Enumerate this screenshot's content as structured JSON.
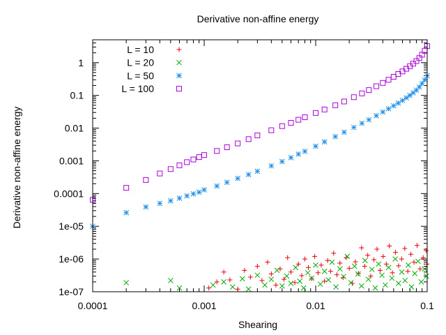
{
  "chart_data": {
    "type": "scatter",
    "title": "Derivative non-affine energy",
    "xlabel": "Shearing",
    "ylabel": "Derivative non-affine energy",
    "xscale": "log",
    "yscale": "log",
    "xlim": [
      0.0001,
      0.1
    ],
    "ylim": [
      1e-07,
      5
    ],
    "xticks": [
      {
        "value": 0.0001,
        "label": "0.0001"
      },
      {
        "value": 0.001,
        "label": "0.001"
      },
      {
        "value": 0.01,
        "label": "0.01"
      },
      {
        "value": 0.1,
        "label": "0.1"
      }
    ],
    "yticks": [
      {
        "value": 1e-07,
        "label": "1e-07"
      },
      {
        "value": 1e-06,
        "label": "1e-06"
      },
      {
        "value": 1e-05,
        "label": "1e-05"
      },
      {
        "value": 0.0001,
        "label": "0.0001"
      },
      {
        "value": 0.001,
        "label": "0.001"
      },
      {
        "value": 0.01,
        "label": "0.01"
      },
      {
        "value": 0.1,
        "label": "0.1"
      },
      {
        "value": 1,
        "label": "1"
      }
    ],
    "grid": false,
    "legend_position": "top-left",
    "series": [
      {
        "name": "L = 10",
        "marker": "plus",
        "color": "#e8000b",
        "points": [
          [
            0.0011,
            1.3e-07
          ],
          [
            0.0013,
            2e-07
          ],
          [
            0.0015,
            4e-07
          ],
          [
            0.0017,
            2.3e-07
          ],
          [
            0.002,
            1.2e-07
          ],
          [
            0.0023,
            4.5e-07
          ],
          [
            0.0026,
            2.8e-07
          ],
          [
            0.003,
            6e-07
          ],
          [
            0.0033,
            2.2e-07
          ],
          [
            0.0037,
            8e-07
          ],
          [
            0.004,
            3.5e-07
          ],
          [
            0.0044,
            1.6e-07
          ],
          [
            0.0048,
            5e-07
          ],
          [
            0.0052,
            2.4e-07
          ],
          [
            0.0056,
            1.1e-06
          ],
          [
            0.006,
            4e-07
          ],
          [
            0.0065,
            1.9e-07
          ],
          [
            0.007,
            7e-07
          ],
          [
            0.0075,
            3.1e-07
          ],
          [
            0.008,
            1e-06
          ],
          [
            0.0086,
            5.5e-07
          ],
          [
            0.0092,
            2.5e-07
          ],
          [
            0.0098,
            1.2e-06
          ],
          [
            0.0105,
            3.8e-07
          ],
          [
            0.0112,
            6.5e-07
          ],
          [
            0.012,
            2.1e-07
          ],
          [
            0.0128,
            9e-07
          ],
          [
            0.0136,
            4.2e-07
          ],
          [
            0.0145,
            1.5e-06
          ],
          [
            0.0155,
            3.3e-07
          ],
          [
            0.0165,
            7.5e-07
          ],
          [
            0.0176,
            2.7e-07
          ],
          [
            0.0188,
            1.1e-06
          ],
          [
            0.02,
            5.2e-07
          ],
          [
            0.0213,
            1.8e-07
          ],
          [
            0.0227,
            8.2e-07
          ],
          [
            0.0242,
            3.6e-07
          ],
          [
            0.0258,
            2.2e-06
          ],
          [
            0.0275,
            6e-07
          ],
          [
            0.0293,
            1.3e-06
          ],
          [
            0.0312,
            3e-07
          ],
          [
            0.0333,
            9.5e-07
          ],
          [
            0.0355,
            2e-06
          ],
          [
            0.0378,
            4.5e-07
          ],
          [
            0.0403,
            1.2e-06
          ],
          [
            0.043,
            7e-07
          ],
          [
            0.0458,
            2.5e-06
          ],
          [
            0.0488,
            3.8e-07
          ],
          [
            0.052,
            1.6e-06
          ],
          [
            0.0554,
            6.2e-07
          ],
          [
            0.059,
            1e-06
          ],
          [
            0.0629,
            2.1e-06
          ],
          [
            0.067,
            4.2e-07
          ],
          [
            0.0714,
            1.4e-06
          ],
          [
            0.0761,
            8e-07
          ],
          [
            0.0811,
            2.6e-06
          ],
          [
            0.0864,
            5e-07
          ],
          [
            0.092,
            1.1e-06
          ],
          [
            0.098,
            1.8e-06
          ],
          [
            0.0995,
            7e-07
          ]
        ]
      },
      {
        "name": "L = 20",
        "marker": "cross",
        "color": "#00aa00",
        "points": [
          [
            0.0002,
            1.9e-07
          ],
          [
            0.0005,
            2.2e-07
          ],
          [
            0.0006,
            1.3e-07
          ],
          [
            0.0012,
            1.6e-07
          ],
          [
            0.0015,
            2e-07
          ],
          [
            0.0018,
            1.4e-07
          ],
          [
            0.0022,
            2.5e-07
          ],
          [
            0.0025,
            1.2e-07
          ],
          [
            0.003,
            3.2e-07
          ],
          [
            0.0035,
            1.6e-07
          ],
          [
            0.004,
            2.4e-07
          ],
          [
            0.0045,
            4.5e-07
          ],
          [
            0.005,
            1.5e-07
          ],
          [
            0.0055,
            3e-07
          ],
          [
            0.006,
            1.8e-07
          ],
          [
            0.0066,
            5.5e-07
          ],
          [
            0.0072,
            2.1e-07
          ],
          [
            0.0078,
            1.3e-07
          ],
          [
            0.0085,
            3.8e-07
          ],
          [
            0.0092,
            2.6e-07
          ],
          [
            0.01,
            6.5e-07
          ],
          [
            0.011,
            1.7e-07
          ],
          [
            0.012,
            4.2e-07
          ],
          [
            0.013,
            2.3e-07
          ],
          [
            0.014,
            8e-07
          ],
          [
            0.0152,
            1.4e-07
          ],
          [
            0.0165,
            5e-07
          ],
          [
            0.0178,
            2.9e-07
          ],
          [
            0.0192,
            1.2e-06
          ],
          [
            0.0207,
            1.9e-07
          ],
          [
            0.0223,
            6e-07
          ],
          [
            0.024,
            3.5e-07
          ],
          [
            0.0258,
            1.5e-07
          ],
          [
            0.0277,
            9e-07
          ],
          [
            0.0297,
            2.4e-07
          ],
          [
            0.0319,
            4.8e-07
          ],
          [
            0.0342,
            1.3e-07
          ],
          [
            0.0367,
            7e-07
          ],
          [
            0.0393,
            3.2e-07
          ],
          [
            0.0421,
            1.6e-07
          ],
          [
            0.0451,
            5.5e-07
          ],
          [
            0.0483,
            2.6e-07
          ],
          [
            0.0517,
            1e-06
          ],
          [
            0.0553,
            1.8e-07
          ],
          [
            0.0592,
            4e-07
          ],
          [
            0.0633,
            2.2e-07
          ],
          [
            0.0677,
            6.5e-07
          ],
          [
            0.0724,
            1.4e-07
          ],
          [
            0.0774,
            3.6e-07
          ],
          [
            0.0828,
            8.5e-07
          ],
          [
            0.0885,
            2e-07
          ],
          [
            0.0946,
            5e-07
          ],
          [
            0.0985,
            3e-07
          ]
        ]
      },
      {
        "name": "L = 50",
        "marker": "star",
        "color": "#1e8fe8",
        "points": [
          [
            0.0001,
            1e-05
          ],
          [
            0.0002,
            2.6e-05
          ],
          [
            0.0003,
            3.9e-05
          ],
          [
            0.0004,
            5e-05
          ],
          [
            0.0005,
            6e-05
          ],
          [
            0.0006,
            7.2e-05
          ],
          [
            0.0007,
            8.5e-05
          ],
          [
            0.0008,
            9.8e-05
          ],
          [
            0.0009,
            0.00011
          ],
          [
            0.001,
            0.00013
          ],
          [
            0.0013,
            0.00017
          ],
          [
            0.0016,
            0.00022
          ],
          [
            0.002,
            0.00029
          ],
          [
            0.0025,
            0.00038
          ],
          [
            0.003,
            0.00048
          ],
          [
            0.004,
            0.0007
          ],
          [
            0.005,
            0.00095
          ],
          [
            0.006,
            0.00125
          ],
          [
            0.007,
            0.0016
          ],
          [
            0.008,
            0.00195
          ],
          [
            0.01,
            0.0028
          ],
          [
            0.012,
            0.0038
          ],
          [
            0.015,
            0.0055
          ],
          [
            0.018,
            0.0075
          ],
          [
            0.022,
            0.0105
          ],
          [
            0.026,
            0.014
          ],
          [
            0.03,
            0.018
          ],
          [
            0.035,
            0.024
          ],
          [
            0.04,
            0.031
          ],
          [
            0.045,
            0.039
          ],
          [
            0.05,
            0.048
          ],
          [
            0.055,
            0.058
          ],
          [
            0.06,
            0.07
          ],
          [
            0.065,
            0.084
          ],
          [
            0.07,
            0.1
          ],
          [
            0.075,
            0.12
          ],
          [
            0.08,
            0.145
          ],
          [
            0.085,
            0.18
          ],
          [
            0.09,
            0.23
          ],
          [
            0.095,
            0.3
          ],
          [
            0.1,
            0.4
          ]
        ]
      },
      {
        "name": "L = 100",
        "marker": "square",
        "color": "#aa00dd",
        "points": [
          [
            0.0001,
            6.4e-05
          ],
          [
            0.0002,
            0.00015
          ],
          [
            0.0003,
            0.00026
          ],
          [
            0.0004,
            0.00041
          ],
          [
            0.0005,
            0.00056
          ],
          [
            0.0006,
            0.00073
          ],
          [
            0.0007,
            0.00091
          ],
          [
            0.0008,
            0.0011
          ],
          [
            0.0009,
            0.0013
          ],
          [
            0.001,
            0.0015
          ],
          [
            0.0013,
            0.002
          ],
          [
            0.0016,
            0.0026
          ],
          [
            0.002,
            0.0034
          ],
          [
            0.0025,
            0.0046
          ],
          [
            0.003,
            0.006
          ],
          [
            0.004,
            0.0086
          ],
          [
            0.005,
            0.0115
          ],
          [
            0.006,
            0.0145
          ],
          [
            0.007,
            0.018
          ],
          [
            0.008,
            0.0215
          ],
          [
            0.01,
            0.029
          ],
          [
            0.012,
            0.037
          ],
          [
            0.015,
            0.05
          ],
          [
            0.018,
            0.065
          ],
          [
            0.022,
            0.088
          ],
          [
            0.026,
            0.115
          ],
          [
            0.03,
            0.145
          ],
          [
            0.035,
            0.19
          ],
          [
            0.04,
            0.24
          ],
          [
            0.045,
            0.3
          ],
          [
            0.05,
            0.37
          ],
          [
            0.055,
            0.45
          ],
          [
            0.06,
            0.54
          ],
          [
            0.065,
            0.65
          ],
          [
            0.07,
            0.78
          ],
          [
            0.075,
            0.93
          ],
          [
            0.08,
            1.12
          ],
          [
            0.085,
            1.38
          ],
          [
            0.09,
            1.75
          ],
          [
            0.095,
            2.3
          ],
          [
            0.1,
            3.2
          ]
        ]
      }
    ]
  }
}
